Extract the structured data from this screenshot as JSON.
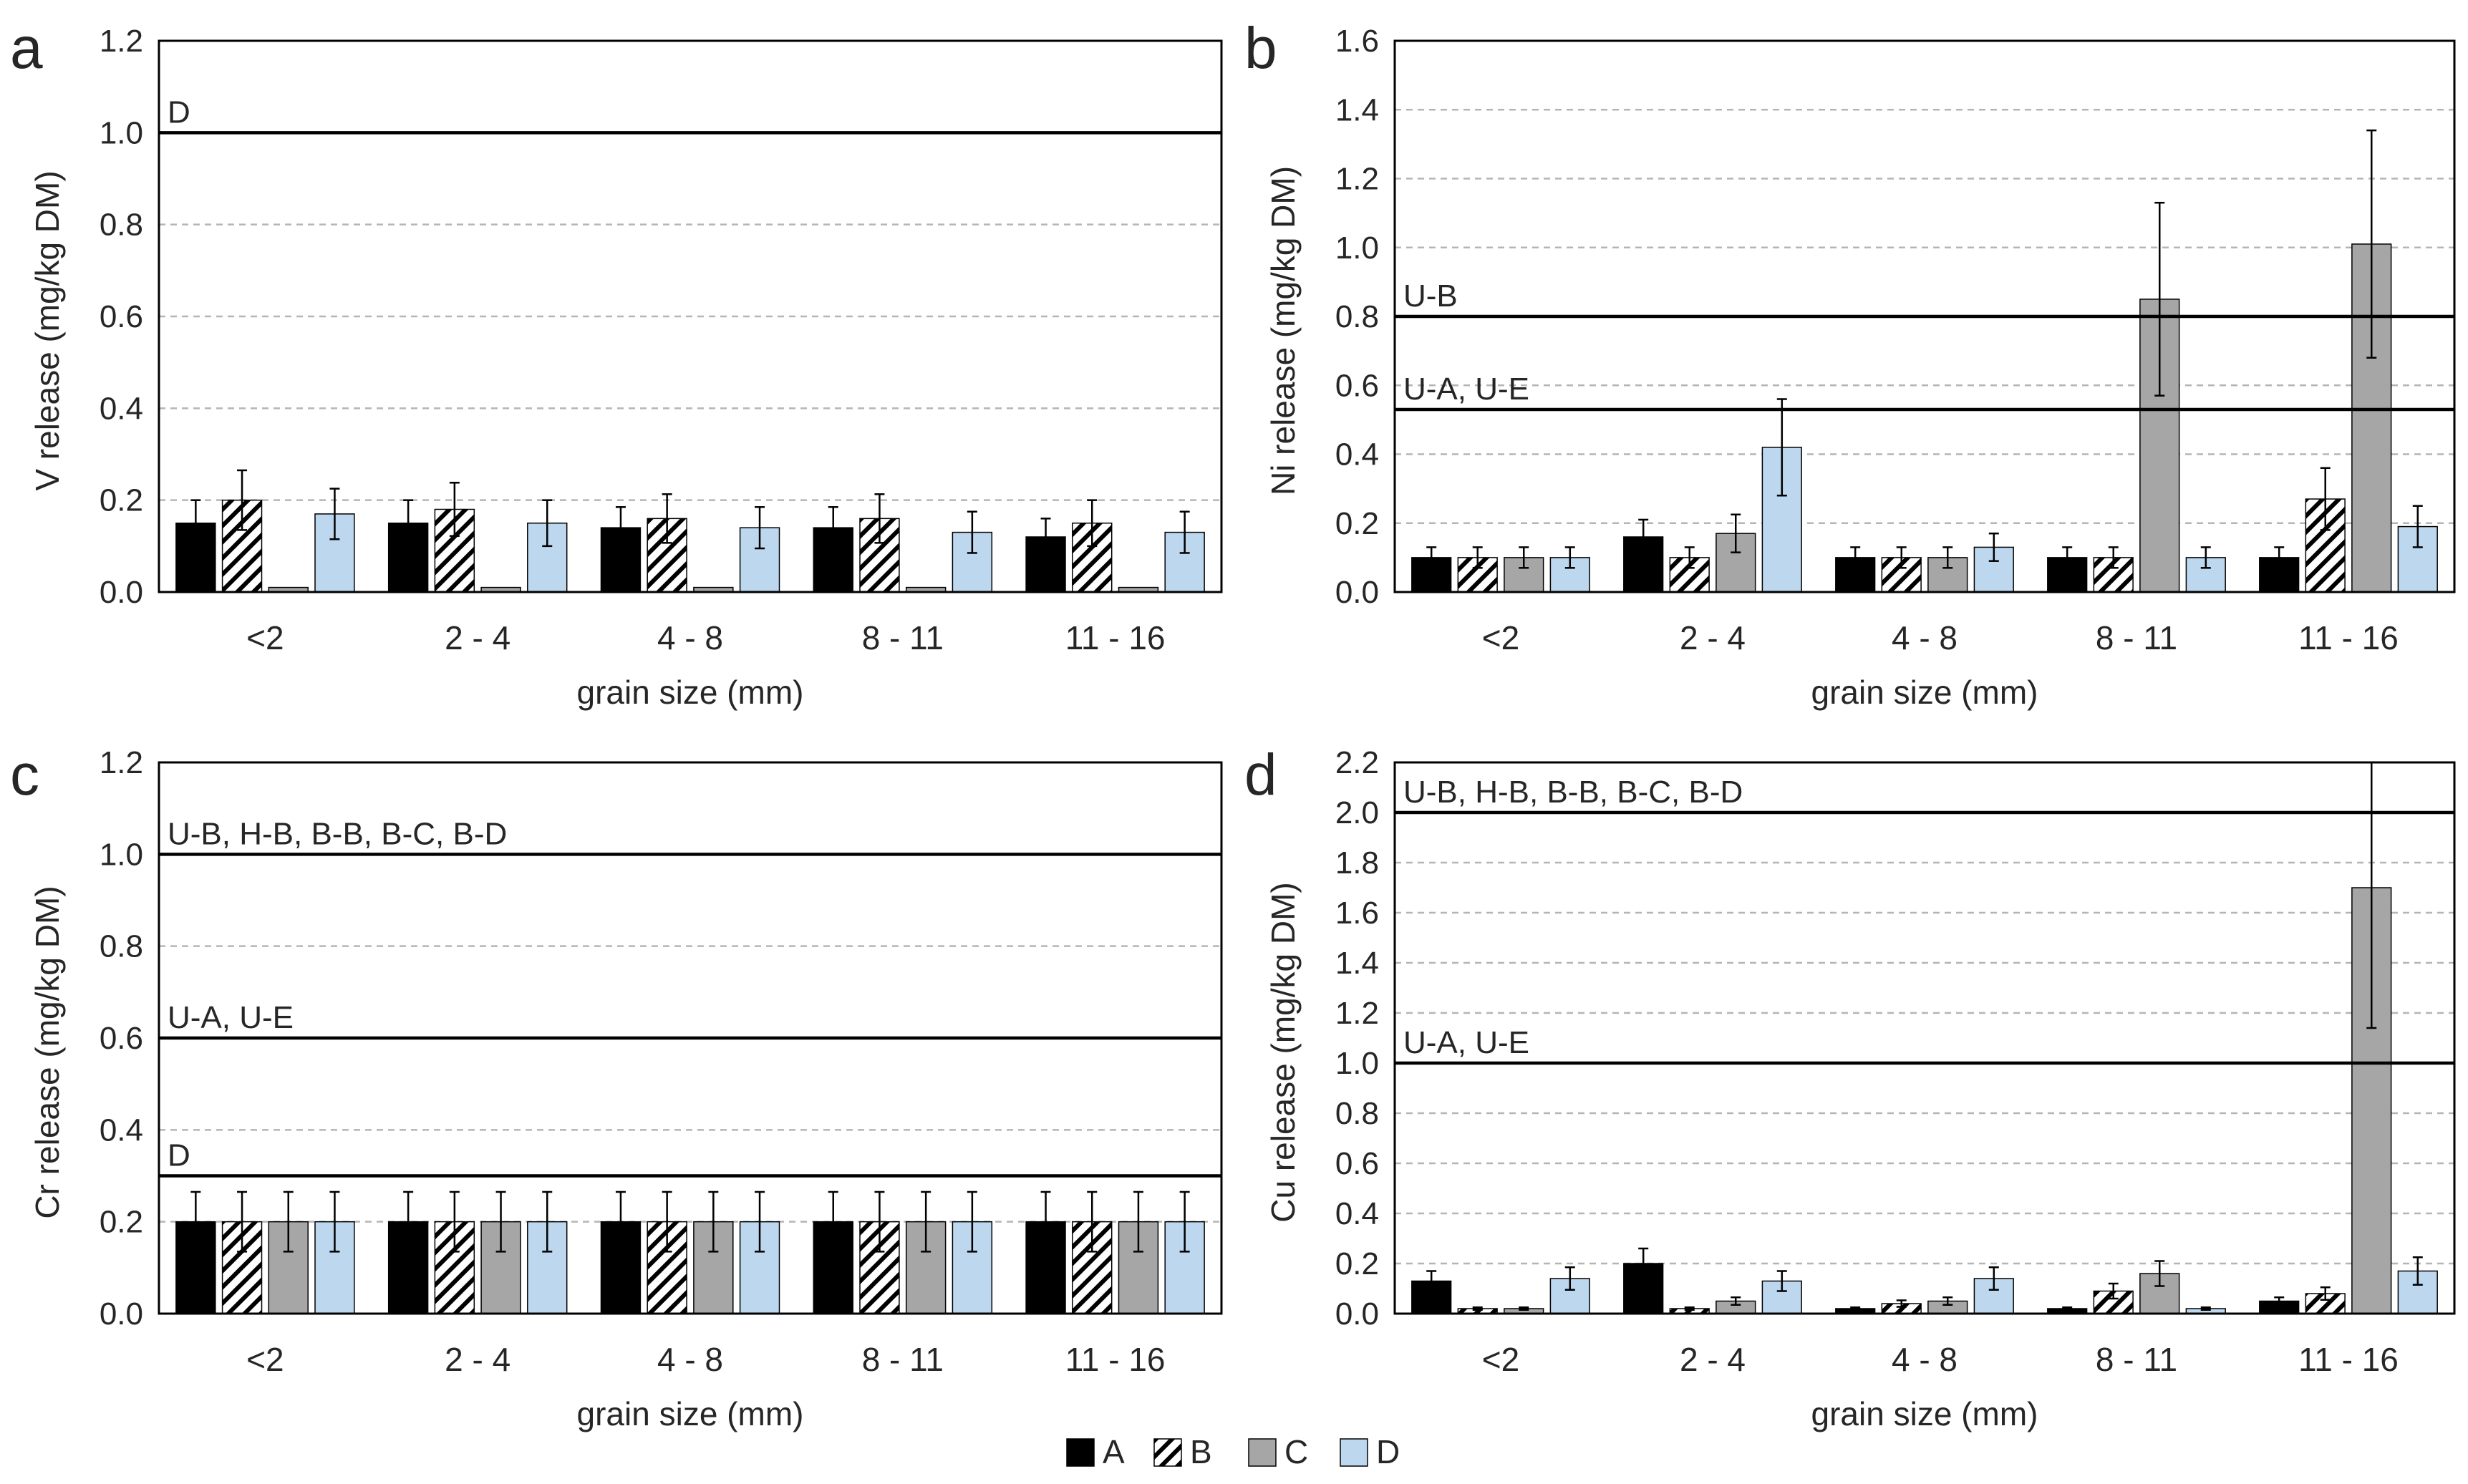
{
  "legend": {
    "items": [
      {
        "key": "A",
        "label": "A",
        "fill": "#000000",
        "pattern": "solid"
      },
      {
        "key": "B",
        "label": "B",
        "fill": "#ffffff",
        "pattern": "hatch"
      },
      {
        "key": "C",
        "label": "C",
        "fill": "#a6a6a6",
        "pattern": "solid"
      },
      {
        "key": "D",
        "label": "D",
        "fill": "#bdd7ee",
        "pattern": "solid"
      }
    ]
  },
  "chart_data": [
    {
      "type": "bar",
      "panel_label": "a",
      "title": "",
      "xlabel": "grain size (mm)",
      "ylabel": "V release (mg/kg DM)",
      "ylim": [
        0,
        1.2
      ],
      "yticks": [
        "0.0",
        "0.2",
        "0.4",
        "0.6",
        "0.8",
        "1.0",
        "1.2"
      ],
      "grid": "horizontal-dashed",
      "categories": [
        "<2",
        "2 - 4",
        "4 - 8",
        "8 - 11",
        "11 - 16"
      ],
      "series": [
        {
          "name": "A",
          "values": [
            0.15,
            0.15,
            0.14,
            0.14,
            0.12
          ],
          "errors": [
            0.05,
            0.05,
            0.045,
            0.045,
            0.04
          ]
        },
        {
          "name": "B",
          "values": [
            0.2,
            0.18,
            0.16,
            0.16,
            0.15
          ],
          "errors": [
            0.065,
            0.058,
            0.053,
            0.053,
            0.05
          ]
        },
        {
          "name": "C",
          "values": [
            0.01,
            0.01,
            0.01,
            0.01,
            0.01
          ],
          "errors": [
            0,
            0,
            0,
            0,
            0
          ]
        },
        {
          "name": "D",
          "values": [
            0.17,
            0.15,
            0.14,
            0.13,
            0.13
          ],
          "errors": [
            0.055,
            0.05,
            0.045,
            0.045,
            0.045
          ]
        }
      ],
      "thresholds": [
        {
          "value": 1.0,
          "label": "D"
        }
      ]
    },
    {
      "type": "bar",
      "panel_label": "b",
      "title": "",
      "xlabel": "grain size (mm)",
      "ylabel": "Ni release (mg/kg DM)",
      "ylim": [
        0,
        1.6
      ],
      "yticks": [
        "0.0",
        "0.2",
        "0.4",
        "0.6",
        "0.8",
        "1.0",
        "1.2",
        "1.4",
        "1.6"
      ],
      "grid": "horizontal-dashed",
      "categories": [
        "<2",
        "2 - 4",
        "4 - 8",
        "8 - 11",
        "11 - 16"
      ],
      "series": [
        {
          "name": "A",
          "values": [
            0.1,
            0.16,
            0.1,
            0.1,
            0.1
          ],
          "errors": [
            0.03,
            0.05,
            0.03,
            0.03,
            0.03
          ]
        },
        {
          "name": "B",
          "values": [
            0.1,
            0.1,
            0.1,
            0.1,
            0.27
          ],
          "errors": [
            0.03,
            0.03,
            0.03,
            0.03,
            0.09
          ]
        },
        {
          "name": "C",
          "values": [
            0.1,
            0.17,
            0.1,
            0.85,
            1.01
          ],
          "errors": [
            0.03,
            0.055,
            0.03,
            0.28,
            0.33
          ]
        },
        {
          "name": "D",
          "values": [
            0.1,
            0.42,
            0.13,
            0.1,
            0.19
          ],
          "errors": [
            0.03,
            0.14,
            0.04,
            0.03,
            0.06
          ]
        }
      ],
      "thresholds": [
        {
          "value": 0.8,
          "label": "U-B"
        },
        {
          "value": 0.53,
          "label": "U-A, U-E"
        }
      ]
    },
    {
      "type": "bar",
      "panel_label": "c",
      "title": "",
      "xlabel": "grain size (mm)",
      "ylabel": "Cr release (mg/kg DM)",
      "ylim": [
        0,
        1.2
      ],
      "yticks": [
        "0.0",
        "0.2",
        "0.4",
        "0.6",
        "0.8",
        "1.0",
        "1.2"
      ],
      "grid": "horizontal-dashed",
      "categories": [
        "<2",
        "2 - 4",
        "4 - 8",
        "8 - 11",
        "11 - 16"
      ],
      "series": [
        {
          "name": "A",
          "values": [
            0.2,
            0.2,
            0.2,
            0.2,
            0.2
          ],
          "errors": [
            0.065,
            0.065,
            0.065,
            0.065,
            0.065
          ]
        },
        {
          "name": "B",
          "values": [
            0.2,
            0.2,
            0.2,
            0.2,
            0.2
          ],
          "errors": [
            0.065,
            0.065,
            0.065,
            0.065,
            0.065
          ]
        },
        {
          "name": "C",
          "values": [
            0.2,
            0.2,
            0.2,
            0.2,
            0.2
          ],
          "errors": [
            0.065,
            0.065,
            0.065,
            0.065,
            0.065
          ]
        },
        {
          "name": "D",
          "values": [
            0.2,
            0.2,
            0.2,
            0.2,
            0.2
          ],
          "errors": [
            0.065,
            0.065,
            0.065,
            0.065,
            0.065
          ]
        }
      ],
      "thresholds": [
        {
          "value": 1.0,
          "label": "U-B, H-B, B-B, B-C, B-D"
        },
        {
          "value": 0.6,
          "label": "U-A, U-E"
        },
        {
          "value": 0.3,
          "label": "D"
        }
      ]
    },
    {
      "type": "bar",
      "panel_label": "d",
      "title": "",
      "xlabel": "grain size (mm)",
      "ylabel": "Cu release (mg/kg DM)",
      "ylim": [
        0,
        2.2
      ],
      "yticks": [
        "0.0",
        "0.2",
        "0.4",
        "0.6",
        "0.8",
        "1.0",
        "1.2",
        "1.4",
        "1.6",
        "1.8",
        "2.0",
        "2.2"
      ],
      "grid": "horizontal-dashed",
      "categories": [
        "<2",
        "2 - 4",
        "4 - 8",
        "8 - 11",
        "11 - 16"
      ],
      "series": [
        {
          "name": "A",
          "values": [
            0.13,
            0.2,
            0.02,
            0.02,
            0.05
          ],
          "errors": [
            0.04,
            0.06,
            0.005,
            0.005,
            0.015
          ]
        },
        {
          "name": "B",
          "values": [
            0.02,
            0.02,
            0.04,
            0.09,
            0.08
          ],
          "errors": [
            0.005,
            0.005,
            0.013,
            0.03,
            0.025
          ]
        },
        {
          "name": "C",
          "values": [
            0.02,
            0.05,
            0.05,
            0.16,
            1.7
          ],
          "errors": [
            0.005,
            0.015,
            0.015,
            0.05,
            0.56
          ]
        },
        {
          "name": "D",
          "values": [
            0.14,
            0.13,
            0.14,
            0.02,
            0.17
          ],
          "errors": [
            0.045,
            0.04,
            0.045,
            0.005,
            0.055
          ]
        }
      ],
      "thresholds": [
        {
          "value": 2.0,
          "label": "U-B, H-B, B-B, B-C, B-D"
        },
        {
          "value": 1.0,
          "label": "U-A, U-E"
        }
      ]
    }
  ]
}
